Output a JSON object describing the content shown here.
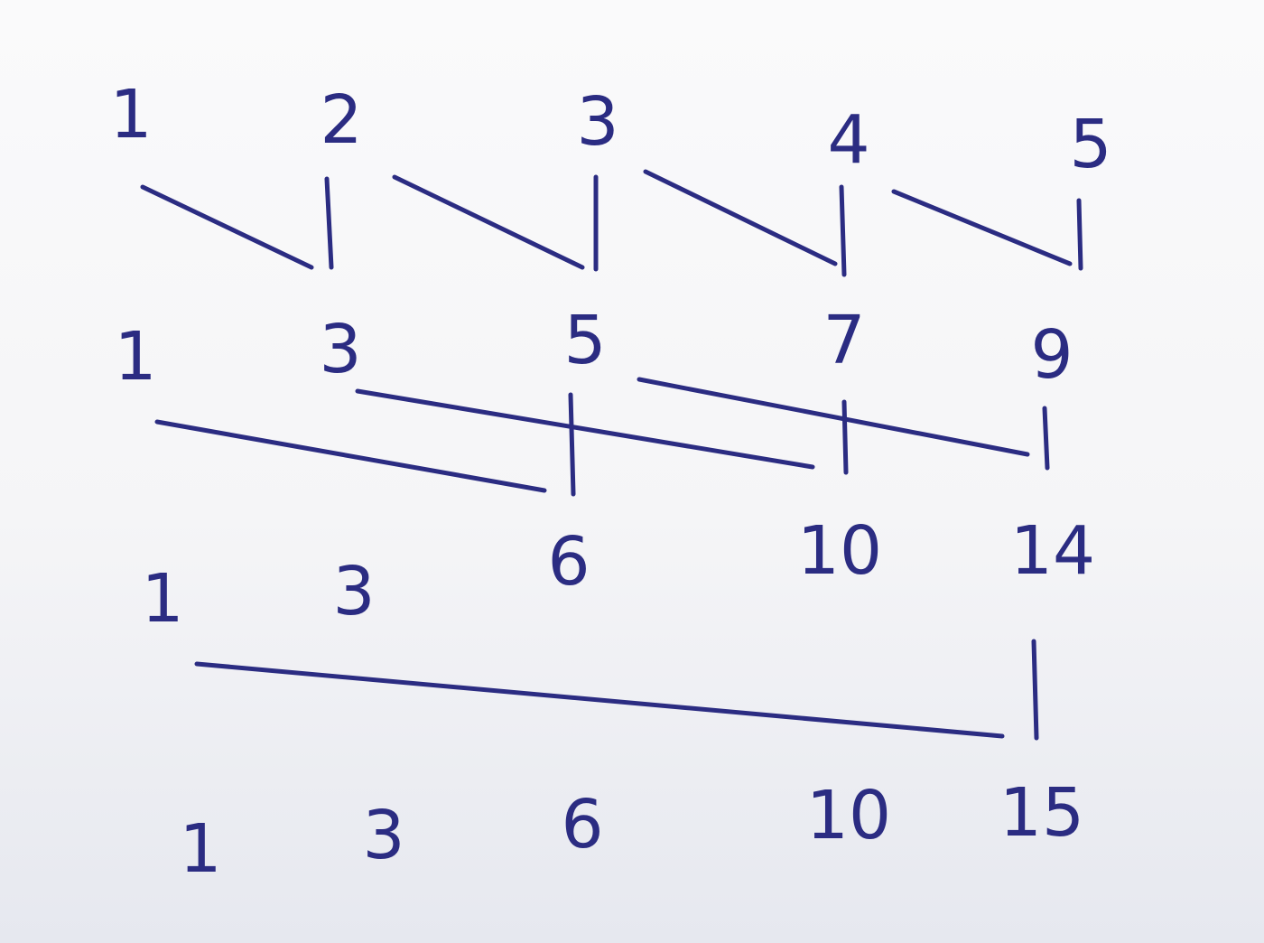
{
  "rows": [
    {
      "values": [
        "1",
        "2",
        "3",
        "4",
        "5"
      ]
    },
    {
      "values": [
        "1",
        "3",
        "5",
        "7",
        "9"
      ]
    },
    {
      "values": [
        "1",
        "3",
        "6",
        "10",
        "14"
      ]
    },
    {
      "values": [
        "1",
        "3",
        "6",
        "10",
        "15"
      ]
    }
  ],
  "connectors": [
    {
      "from_row": 0,
      "from_col": 0,
      "to_row": 0,
      "to_col": 1
    },
    {
      "from_row": 0,
      "from_col": 1,
      "to_row": 0,
      "to_col": 2
    },
    {
      "from_row": 0,
      "from_col": 2,
      "to_row": 0,
      "to_col": 3
    },
    {
      "from_row": 0,
      "from_col": 3,
      "to_row": 0,
      "to_col": 4
    },
    {
      "from_row": 1,
      "from_col": 0,
      "to_row": 1,
      "to_col": 2
    },
    {
      "from_row": 1,
      "from_col": 1,
      "to_row": 1,
      "to_col": 3
    },
    {
      "from_row": 1,
      "from_col": 2,
      "to_row": 1,
      "to_col": 4
    },
    {
      "from_row": 2,
      "from_col": 0,
      "to_row": 2,
      "to_col": 4
    }
  ],
  "ink_color": "#2b2c82",
  "paper_color": "#f5f5f7"
}
